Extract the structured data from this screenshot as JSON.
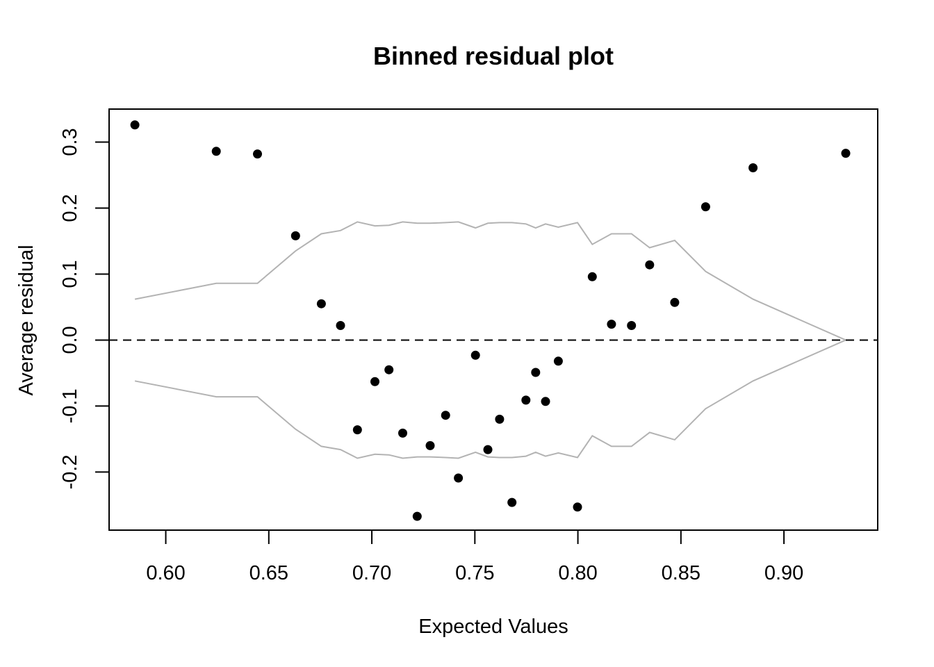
{
  "chart_data": {
    "type": "scatter",
    "title": "Binned residual plot",
    "xlabel": "Expected Values",
    "ylabel": "Average residual",
    "xlim": [
      0.5725,
      0.9455
    ],
    "ylim": [
      -0.288,
      0.35
    ],
    "x_ticks": [
      {
        "value": 0.6,
        "label": "0.60"
      },
      {
        "value": 0.65,
        "label": "0.65"
      },
      {
        "value": 0.7,
        "label": "0.70"
      },
      {
        "value": 0.75,
        "label": "0.75"
      },
      {
        "value": 0.8,
        "label": "0.80"
      },
      {
        "value": 0.85,
        "label": "0.85"
      },
      {
        "value": 0.9,
        "label": "0.90"
      }
    ],
    "y_ticks": [
      {
        "value": -0.2,
        "label": "-0.2"
      },
      {
        "value": -0.1,
        "label": "-0.1"
      },
      {
        "value": 0.0,
        "label": "0.0"
      },
      {
        "value": 0.1,
        "label": "0.1"
      },
      {
        "value": 0.2,
        "label": "0.2"
      },
      {
        "value": 0.3,
        "label": "0.3"
      }
    ],
    "grid": false,
    "reference_line": {
      "y": 0,
      "style": "dashed",
      "color": "#000000"
    },
    "points": {
      "color": "#000000",
      "x": [
        0.585,
        0.6245,
        0.6445,
        0.663,
        0.6755,
        0.6848,
        0.693,
        0.7015,
        0.7083,
        0.715,
        0.722,
        0.7283,
        0.7358,
        0.742,
        0.7503,
        0.7563,
        0.762,
        0.768,
        0.7748,
        0.7795,
        0.7843,
        0.7905,
        0.7998,
        0.807,
        0.8163,
        0.826,
        0.8348,
        0.847,
        0.862,
        0.885,
        0.93
      ],
      "y": [
        0.326,
        0.286,
        0.282,
        0.158,
        0.055,
        0.022,
        -0.136,
        -0.063,
        -0.045,
        -0.141,
        -0.267,
        -0.16,
        -0.114,
        -0.209,
        -0.023,
        -0.166,
        -0.12,
        -0.246,
        -0.091,
        -0.049,
        -0.093,
        -0.032,
        -0.253,
        0.096,
        0.024,
        0.022,
        0.114,
        0.057,
        0.202,
        0.261,
        0.283
      ]
    },
    "bounds": {
      "color": "#b3b3b3",
      "x": [
        0.585,
        0.6245,
        0.6445,
        0.663,
        0.6755,
        0.6848,
        0.693,
        0.7015,
        0.7083,
        0.715,
        0.722,
        0.7283,
        0.7358,
        0.742,
        0.7503,
        0.7563,
        0.762,
        0.768,
        0.7748,
        0.7795,
        0.7843,
        0.7905,
        0.7998,
        0.807,
        0.8163,
        0.826,
        0.8348,
        0.847,
        0.862,
        0.885,
        0.93
      ],
      "upper": [
        0.062,
        0.086,
        0.086,
        0.135,
        0.161,
        0.166,
        0.179,
        0.173,
        0.174,
        0.179,
        0.177,
        0.177,
        0.178,
        0.179,
        0.17,
        0.177,
        0.178,
        0.178,
        0.176,
        0.17,
        0.176,
        0.171,
        0.178,
        0.145,
        0.161,
        0.161,
        0.14,
        0.151,
        0.104,
        0.062,
        0.0
      ],
      "lower": [
        -0.062,
        -0.086,
        -0.086,
        -0.135,
        -0.161,
        -0.166,
        -0.179,
        -0.173,
        -0.174,
        -0.179,
        -0.177,
        -0.177,
        -0.178,
        -0.179,
        -0.17,
        -0.177,
        -0.178,
        -0.178,
        -0.176,
        -0.17,
        -0.176,
        -0.171,
        -0.178,
        -0.145,
        -0.161,
        -0.161,
        -0.14,
        -0.151,
        -0.104,
        -0.062,
        0.0
      ]
    }
  }
}
